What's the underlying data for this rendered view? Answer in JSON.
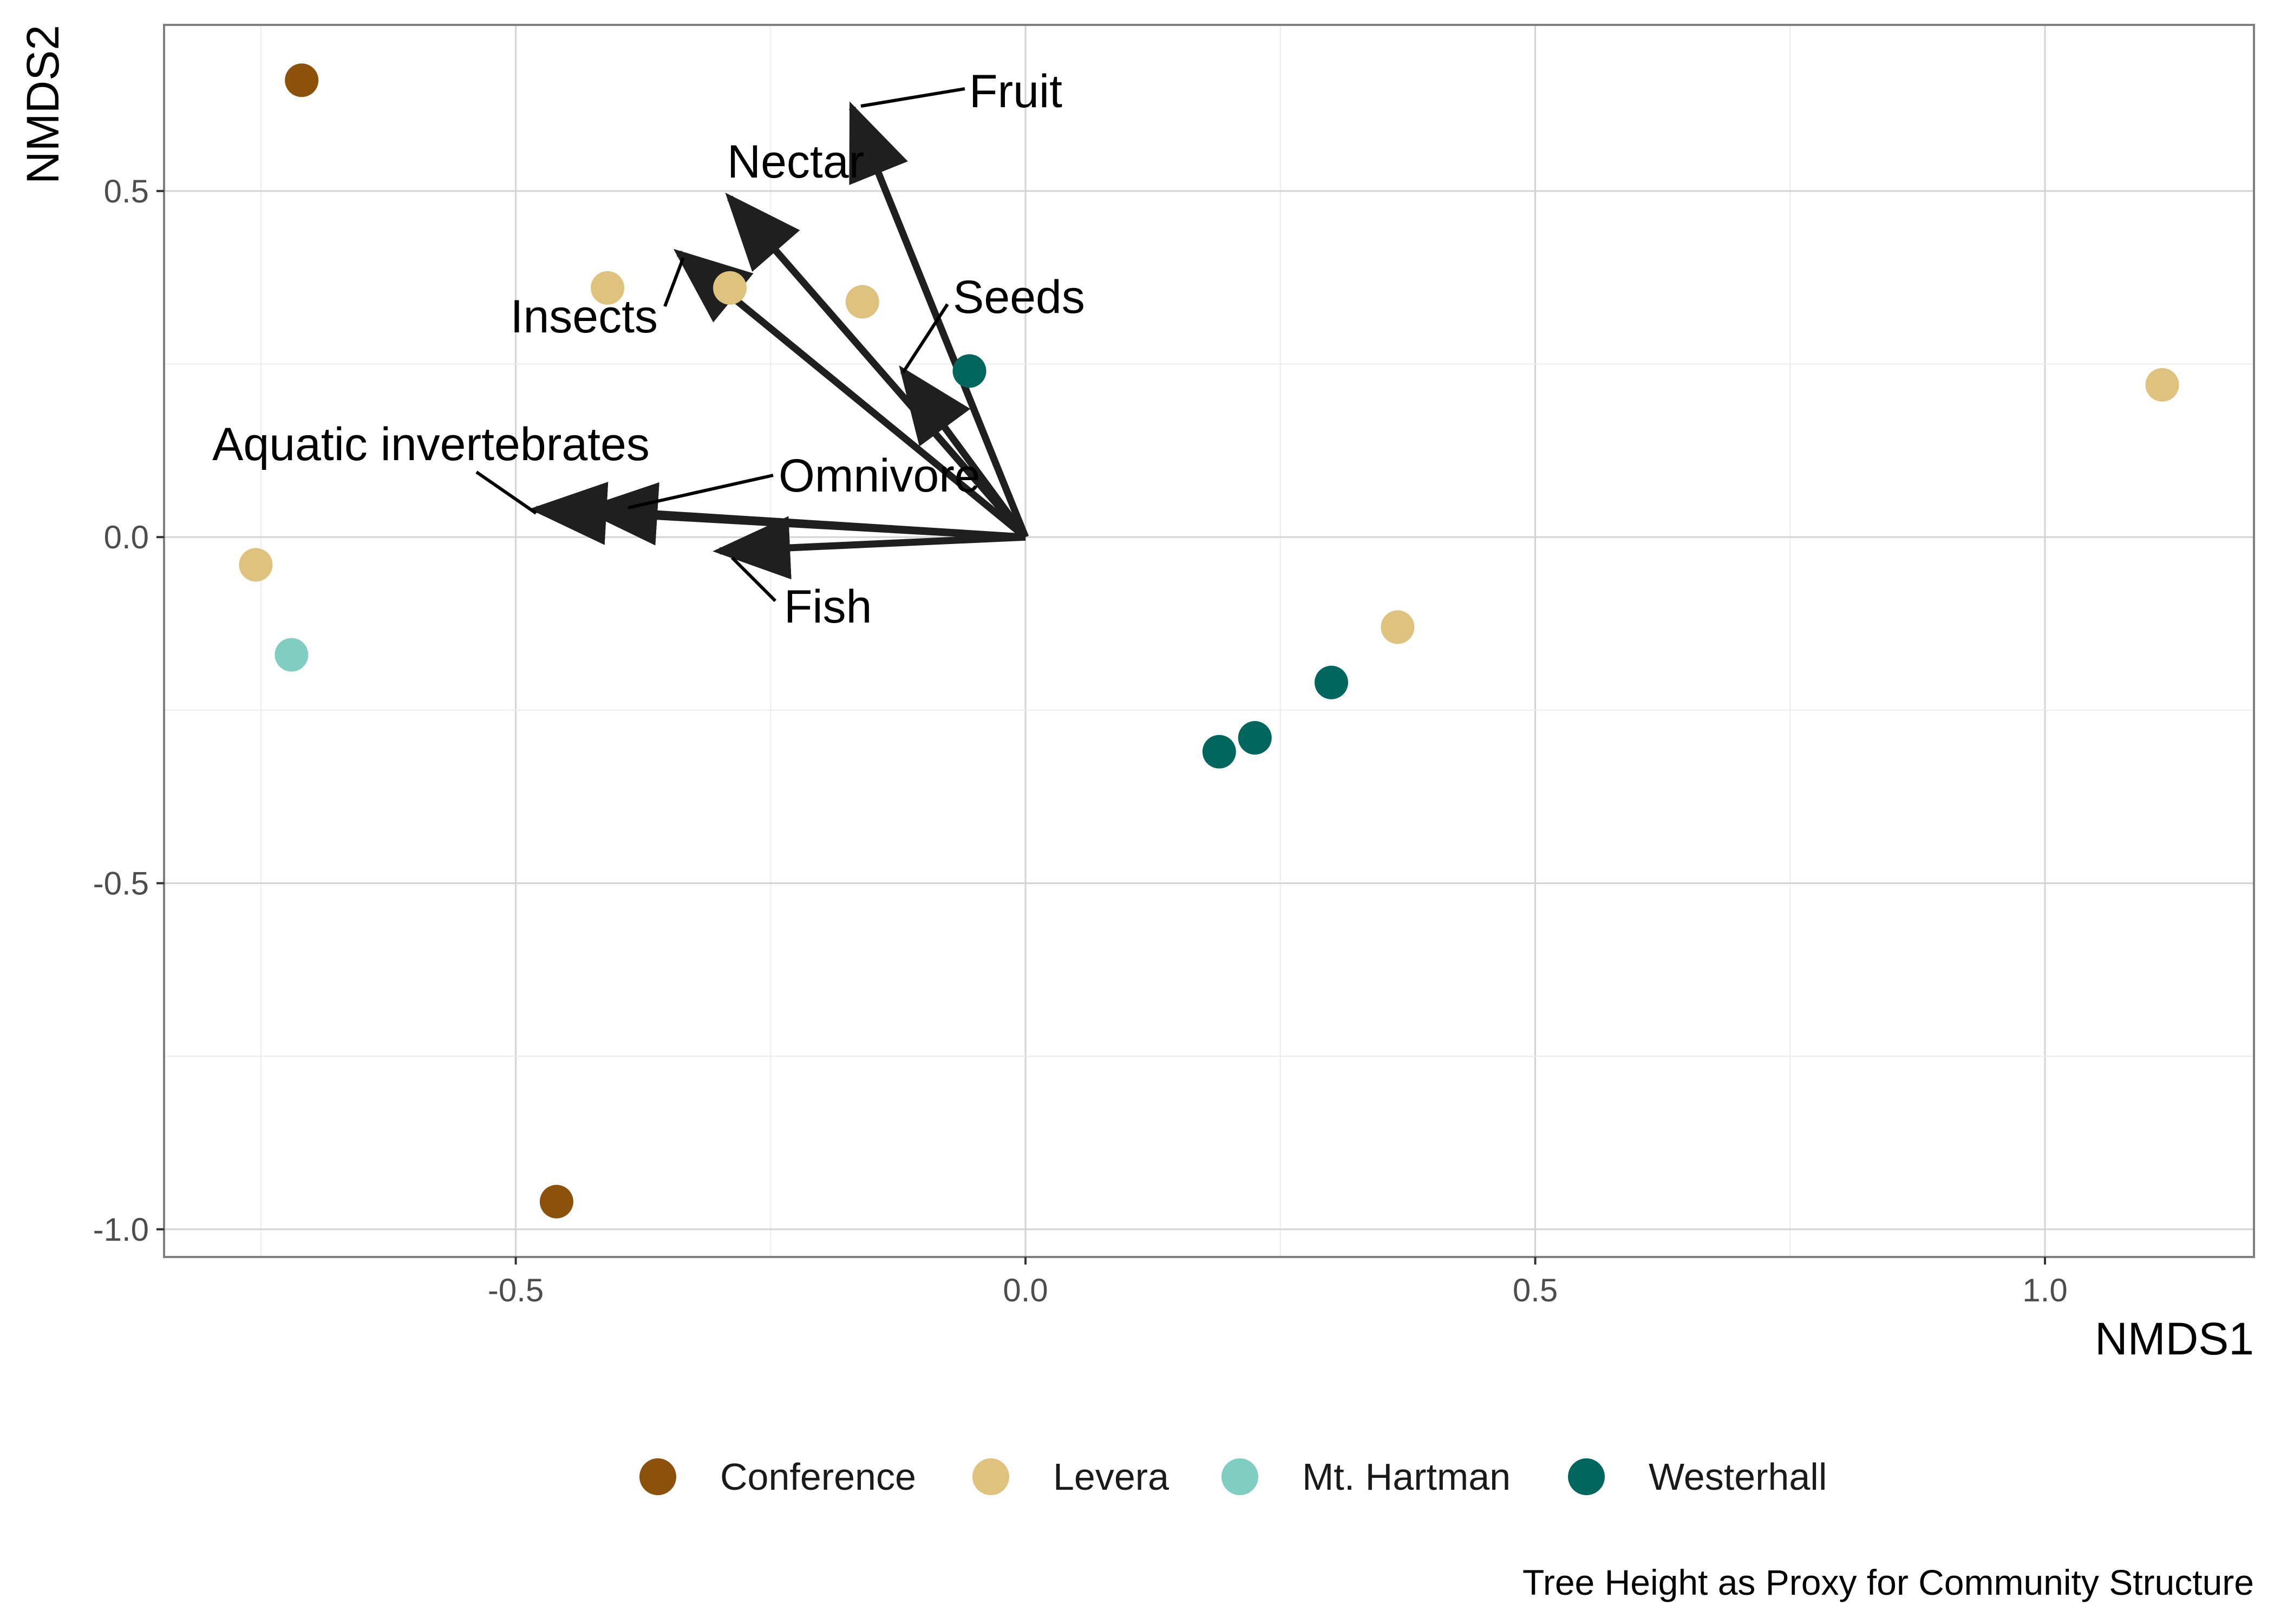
{
  "chart_data": {
    "type": "scatter",
    "xlabel": "NMDS1",
    "ylabel": "NMDS2",
    "caption": "Tree Height as Proxy for Community Structure",
    "xlim": [
      -0.845,
      1.205
    ],
    "ylim": [
      -1.04,
      0.74
    ],
    "xticks": [
      -0.5,
      0.0,
      0.5,
      1.0
    ],
    "xtick_labels": [
      "-0.5",
      "0.0",
      "0.5",
      "1.0"
    ],
    "yticks": [
      -1.0,
      -0.5,
      0.0,
      0.5
    ],
    "ytick_labels": [
      "-1.0",
      "-0.5",
      "0.0",
      "0.5"
    ],
    "grid": true,
    "legend_position": "bottom",
    "series": [
      {
        "name": "Conference",
        "color": "#8c510a",
        "points": [
          [
            -0.71,
            0.66
          ],
          [
            -0.46,
            -0.96
          ]
        ]
      },
      {
        "name": "Levera",
        "color": "#dfc27d",
        "points": [
          [
            -0.41,
            0.36
          ],
          [
            -0.29,
            0.36
          ],
          [
            -0.16,
            0.34
          ],
          [
            -0.755,
            -0.04
          ],
          [
            0.365,
            -0.13
          ],
          [
            1.115,
            0.22
          ]
        ]
      },
      {
        "name": "Mt. Hartman",
        "color": "#80cdc1",
        "points": [
          [
            -0.72,
            -0.17
          ]
        ]
      },
      {
        "name": "Westerhall",
        "color": "#01665e",
        "points": [
          [
            -0.055,
            0.24
          ],
          [
            0.3,
            -0.21
          ],
          [
            0.225,
            -0.29
          ],
          [
            0.19,
            -0.31
          ]
        ]
      }
    ],
    "vectors": [
      {
        "label": "Fruit",
        "x": -0.17,
        "y": 0.62
      },
      {
        "label": "Nectar",
        "x": -0.29,
        "y": 0.49
      },
      {
        "label": "Insects",
        "x": -0.34,
        "y": 0.41
      },
      {
        "label": "Seeds",
        "x": -0.12,
        "y": 0.24
      },
      {
        "label": "Aquatic invertebrates",
        "x": -0.48,
        "y": 0.04
      },
      {
        "label": "Omnivore",
        "x": -0.43,
        "y": 0.04
      },
      {
        "label": "Fish",
        "x": -0.3,
        "y": -0.02
      }
    ]
  }
}
